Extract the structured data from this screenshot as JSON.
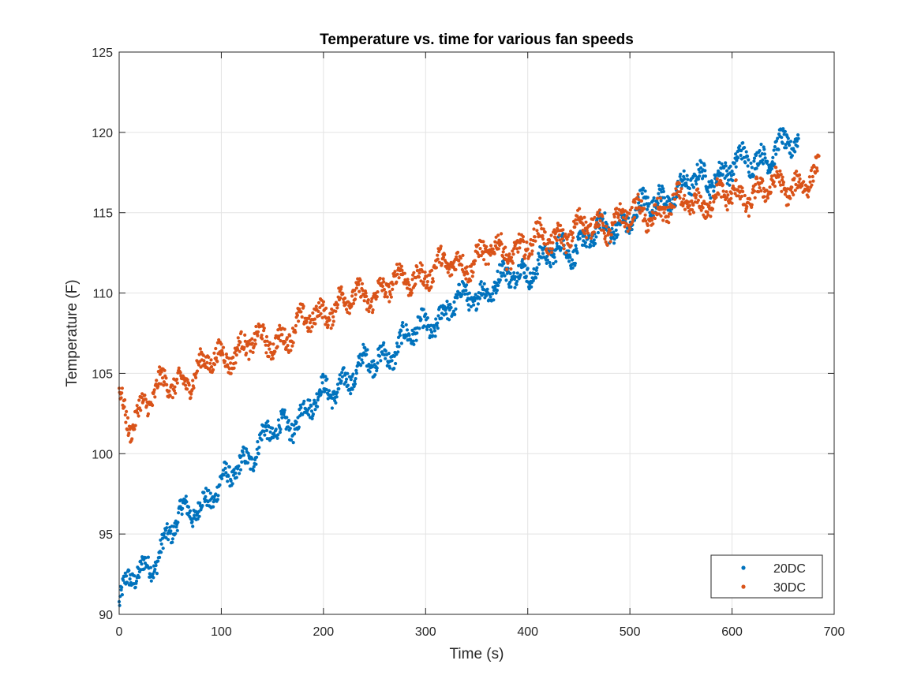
{
  "chart_data": {
    "type": "scatter",
    "title": "Temperature vs. time for various fan speeds",
    "xlabel": "Time (s)",
    "ylabel": "Temperature (F)",
    "xlim": [
      0,
      700
    ],
    "ylim": [
      90,
      125
    ],
    "xticks": [
      0,
      100,
      200,
      300,
      400,
      500,
      600,
      700
    ],
    "yticks": [
      90,
      95,
      100,
      105,
      110,
      115,
      120,
      125
    ],
    "grid": true,
    "legend_position": "bottom-right",
    "series": [
      {
        "name": "20DC",
        "color": "#0072BD",
        "x_range": [
          0,
          665
        ],
        "trend": [
          [
            0,
            90.6
          ],
          [
            10,
            92.0
          ],
          [
            20,
            92.5
          ],
          [
            40,
            94.0
          ],
          [
            60,
            96.0
          ],
          [
            80,
            97.0
          ],
          [
            100,
            97.8
          ],
          [
            120,
            99.5
          ],
          [
            140,
            100.8
          ],
          [
            160,
            101.6
          ],
          [
            180,
            102.6
          ],
          [
            200,
            103.6
          ],
          [
            220,
            104.6
          ],
          [
            250,
            105.8
          ],
          [
            280,
            107.0
          ],
          [
            300,
            108.0
          ],
          [
            330,
            109.3
          ],
          [
            360,
            110.3
          ],
          [
            400,
            111.5
          ],
          [
            440,
            112.8
          ],
          [
            480,
            114.0
          ],
          [
            520,
            115.5
          ],
          [
            560,
            116.8
          ],
          [
            600,
            117.8
          ],
          [
            640,
            118.8
          ],
          [
            665,
            119.3
          ]
        ]
      },
      {
        "name": "30DC",
        "color": "#D95319",
        "x_range": [
          0,
          685
        ],
        "trend": [
          [
            0,
            103.2
          ],
          [
            10,
            101.8
          ],
          [
            20,
            103.0
          ],
          [
            40,
            104.0
          ],
          [
            60,
            104.5
          ],
          [
            80,
            105.3
          ],
          [
            100,
            106.0
          ],
          [
            120,
            106.7
          ],
          [
            150,
            107.0
          ],
          [
            180,
            108.0
          ],
          [
            200,
            109.0
          ],
          [
            230,
            109.6
          ],
          [
            260,
            110.3
          ],
          [
            300,
            111.3
          ],
          [
            330,
            111.8
          ],
          [
            360,
            112.4
          ],
          [
            400,
            113.0
          ],
          [
            440,
            113.8
          ],
          [
            480,
            114.4
          ],
          [
            520,
            115.0
          ],
          [
            560,
            115.6
          ],
          [
            600,
            116.0
          ],
          [
            640,
            116.5
          ],
          [
            685,
            117.2
          ]
        ]
      }
    ]
  }
}
